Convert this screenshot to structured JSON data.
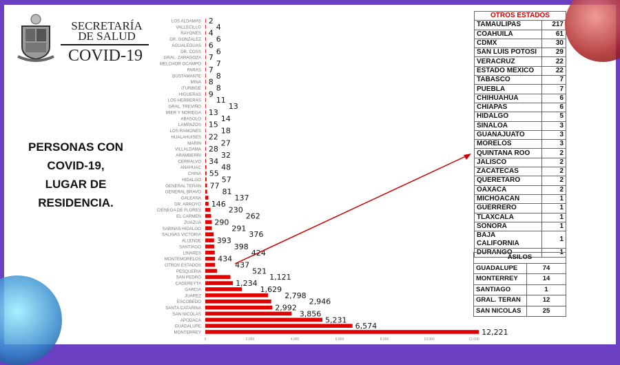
{
  "header": {
    "org_line1": "SECRETARÍA",
    "org_line2": "DE SALUD",
    "program": "COVID-19"
  },
  "headline": [
    "PERSONAS CON",
    "COVID-19,",
    "LUGAR DE",
    "RESIDENCIA."
  ],
  "colors": {
    "bar": "#e00000",
    "frame": "#6a3fc1",
    "arrow": "#cc0000",
    "table_header": "#d40000"
  },
  "chart_data": {
    "type": "bar",
    "orientation": "horizontal",
    "categories": [
      "LOS ALDAMAS",
      "VALLECILLO",
      "RAYONES",
      "DR. GONZALEZ",
      "AGUALEGUAS",
      "DR. COSS",
      "GRAL. ZARAGOZA",
      "MELCHOR OCAMPO",
      "PARAS",
      "BUSTAMANTE",
      "MINA",
      "ITURBIDE",
      "HIGUERAS",
      "LOS HERRERAS",
      "GRAL. TREVIÑO",
      "MIER Y NORIEGA",
      "ABASOLO",
      "LAMPAZOS",
      "LOS RAMONES",
      "HUALAHUISES",
      "MARIN",
      "VILLALDAMA",
      "ARAMBERRI",
      "CERRALVO",
      "ANAHUAC",
      "CHINA",
      "HIDALGO",
      "GENERAL TERAN",
      "GENERAL BRAVO",
      "GALEANA",
      "DR. ARROYO",
      "CIENEGA DE FLORES",
      "EL CARMEN",
      "ZUAZUA",
      "SABINAS HIDALGO",
      "SALINAS VICTORIA",
      "ALLENDE",
      "SANTIAGO",
      "LINARES",
      "MONTEMORELOS",
      "OTROS ESTADOS",
      "PESQUERIA",
      "SAN PEDRO",
      "CADEREYTA",
      "GARCIA",
      "JUAREZ",
      "ESCOBEDO",
      "SANTA CATARINA",
      "SAN NICOLAS",
      "APODACA",
      "GUADALUPE",
      "MONTERREY"
    ],
    "values": [
      2,
      4,
      4,
      6,
      6,
      6,
      7,
      7,
      7,
      8,
      8,
      8,
      9,
      11,
      13,
      13,
      14,
      15,
      18,
      22,
      27,
      28,
      32,
      34,
      48,
      55,
      57,
      77,
      81,
      137,
      146,
      230,
      262,
      290,
      291,
      376,
      393,
      398,
      424,
      434,
      437,
      521,
      1121,
      1234,
      1629,
      2798,
      2946,
      2992,
      3856,
      5231,
      6574,
      12221
    ],
    "value_labels": [
      "2",
      "4",
      "4",
      "6",
      "6",
      "6",
      "7",
      "7",
      "7",
      "8",
      "8",
      "8",
      "9",
      "11",
      "13",
      "13",
      "14",
      "15",
      "18",
      "22",
      "27",
      "28",
      "32",
      "34",
      "48",
      "55",
      "57",
      "77",
      "81",
      "137",
      "146",
      "230",
      "262",
      "290",
      "291",
      "376",
      "393",
      "398",
      "424",
      "434",
      "437",
      "521",
      "1,121",
      "1,234",
      "1,629",
      "2,798",
      "2,946",
      "2,992",
      "3,856",
      "5,231",
      "6,574",
      "12,221"
    ],
    "xticks": [
      "0",
      "2,000",
      "4,000",
      "6,000",
      "8,000",
      "10,000",
      "12,000"
    ],
    "xlim": [
      0,
      12000
    ],
    "grid": false,
    "legend": "none"
  },
  "otros_estados": {
    "title": "OTROS ESTADOS",
    "rows": [
      [
        "TAMAULIPAS",
        "217"
      ],
      [
        "COAHUILA",
        "61"
      ],
      [
        "CDMX",
        "30"
      ],
      [
        "SAN LUIS POTOSI",
        "29"
      ],
      [
        "VERACRUZ",
        "22"
      ],
      [
        "ESTADO MEXICO",
        "22"
      ],
      [
        "TABASCO",
        "7"
      ],
      [
        "PUEBLA",
        "7"
      ],
      [
        "CHIHUAHUA",
        "6"
      ],
      [
        "CHIAPAS",
        "6"
      ],
      [
        "HIDALGO",
        "5"
      ],
      [
        "SINALOA",
        "3"
      ],
      [
        "GUANAJUATO",
        "3"
      ],
      [
        "MORELOS",
        "3"
      ],
      [
        "QUINTANA ROO",
        "2"
      ],
      [
        "JALISCO",
        "2"
      ],
      [
        "ZACATECAS",
        "2"
      ],
      [
        "QUERETARO",
        "2"
      ],
      [
        "OAXACA",
        "2"
      ],
      [
        "MICHOACAN",
        "1"
      ],
      [
        "GUERRERO",
        "1"
      ],
      [
        "TLAXCALA",
        "1"
      ],
      [
        "SONORA",
        "1"
      ],
      [
        "BAJA CALIFORNIA",
        "1"
      ],
      [
        "DURANGO",
        "1"
      ]
    ]
  },
  "asilos": {
    "title": "ASILOS",
    "rows": [
      [
        "GUADALUPE",
        "74"
      ],
      [
        "MONTERREY",
        "14"
      ],
      [
        "SANTIAGO",
        "1"
      ],
      [
        "GRAL. TERAN",
        "12"
      ],
      [
        "SAN NICOLAS",
        "25"
      ]
    ]
  }
}
